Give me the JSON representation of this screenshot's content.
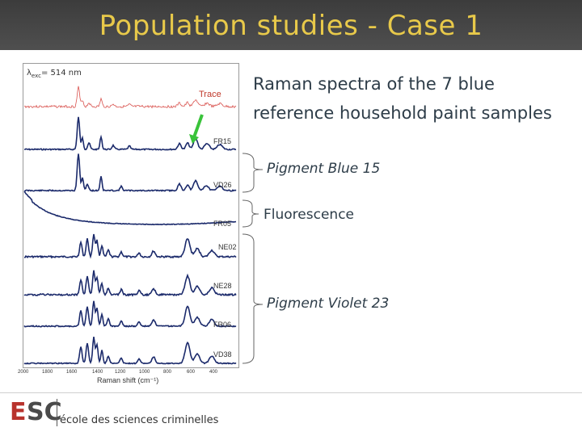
{
  "slide": {
    "title": "Population studies - Case 1"
  },
  "figure": {
    "excitation_label": "λexc = 514 nm",
    "excitation_symbol": "λ",
    "excitation_sub": "exc",
    "excitation_value": "= 514 nm",
    "trace_label": "Trace",
    "spectra_labels": [
      "FR15",
      "VD26",
      "FR05",
      "NE02",
      "NE28",
      "FR06",
      "VD38"
    ],
    "x_ticks": [
      "2000",
      "1800",
      "1600",
      "1400",
      "1200",
      "1000",
      "800",
      "600",
      "400"
    ],
    "x_axis_label": "Raman shift (cm⁻¹)"
  },
  "description": {
    "line1": "Raman spectra of the 7 blue",
    "line2": "reference household paint samples"
  },
  "groups": [
    {
      "label": "Pigment Blue 15",
      "italic": true
    },
    {
      "label": "Fluorescence",
      "italic": false
    },
    {
      "label": "Pigment Violet 23",
      "italic": true
    }
  ],
  "footer": {
    "logo_e": "E",
    "logo_sc": "SC",
    "school_name": "école des sciences criminelles"
  },
  "colors": {
    "title": "#e8c94a",
    "spectra": "#1b2a6b",
    "trace": "#d9534f",
    "arrow": "#39c33a",
    "logo_red": "#b8332d"
  }
}
